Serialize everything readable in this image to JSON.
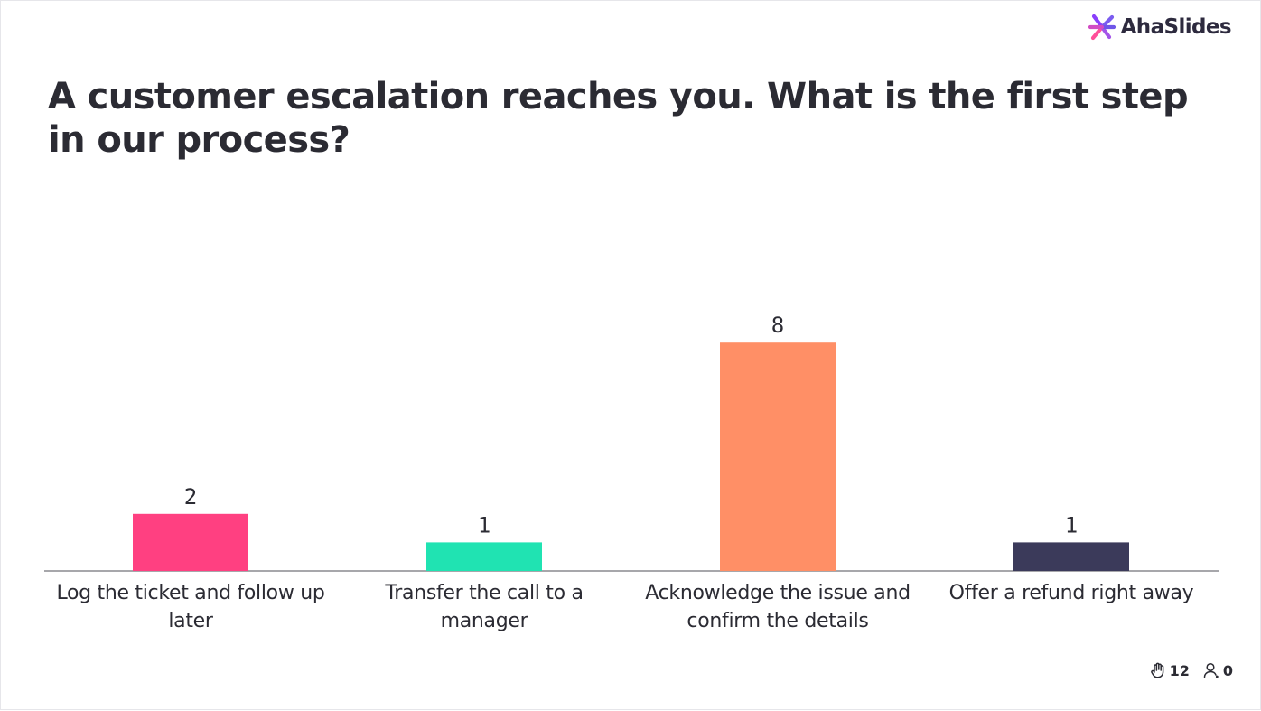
{
  "brand": {
    "name": "AhaSlides",
    "icon": "asterisk-burst-icon"
  },
  "question": "A customer escalation reaches you. What is the first step in our process?",
  "chart_data": {
    "type": "bar",
    "categories": [
      "Log the ticket and follow up later",
      "Transfer the call to a manager",
      "Acknowledge the issue and confirm the details",
      "Offer a refund right away"
    ],
    "values": [
      2,
      1,
      8,
      1
    ],
    "colors": [
      "#ff4081",
      "#20e3b2",
      "#ff8f66",
      "#3b3a5a"
    ],
    "ylim": [
      0,
      8
    ],
    "grid": false,
    "title": "",
    "xlabel": "",
    "ylabel": ""
  },
  "footer": {
    "reactions_icon": "hand-icon",
    "reactions_count": "12",
    "participants_icon": "person-icon",
    "participants_count": "0"
  }
}
